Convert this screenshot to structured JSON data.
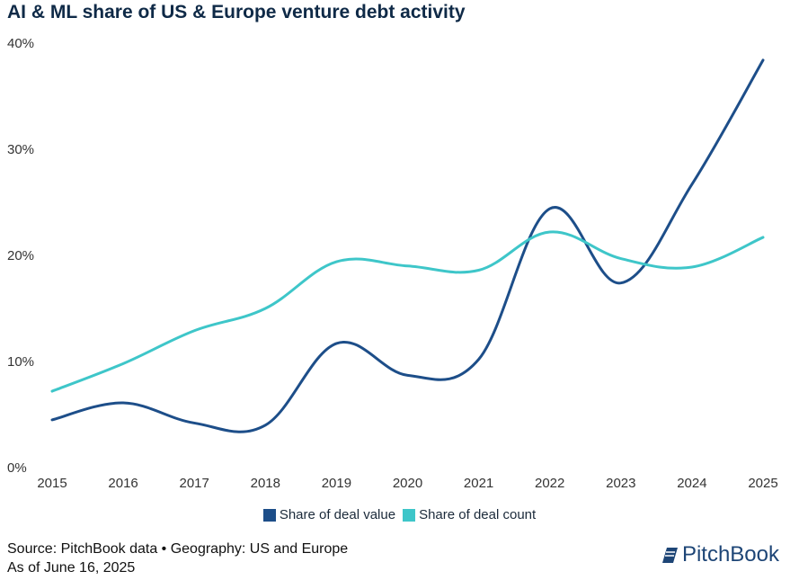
{
  "chart_data": {
    "type": "line",
    "title": "AI & ML share of US & Europe venture debt activity",
    "xlabel": "",
    "ylabel": "",
    "x": [
      "2015",
      "2016",
      "2017",
      "2018",
      "2019",
      "2020",
      "2021",
      "2022",
      "2023",
      "2024",
      "2025"
    ],
    "yticks": [
      "0%",
      "10%",
      "20%",
      "30%",
      "40%"
    ],
    "ylim": [
      0,
      40
    ],
    "grid": false,
    "legend": "bottom",
    "series": [
      {
        "name": "Share of deal value",
        "color": "#1d4e89",
        "values": [
          4.5,
          6.1,
          4.2,
          4.0,
          11.7,
          8.7,
          10.2,
          24.4,
          17.4,
          26.7,
          38.4
        ]
      },
      {
        "name": "Share of deal count",
        "color": "#3ec6c9",
        "values": [
          7.2,
          9.8,
          12.9,
          15.0,
          19.4,
          19.0,
          18.6,
          22.2,
          19.7,
          18.9,
          21.7
        ]
      }
    ]
  },
  "footer": {
    "source": "Source: PitchBook data • Geography: US and Europe",
    "date": "As of June 16, 2025",
    "logo": "PitchBook"
  }
}
